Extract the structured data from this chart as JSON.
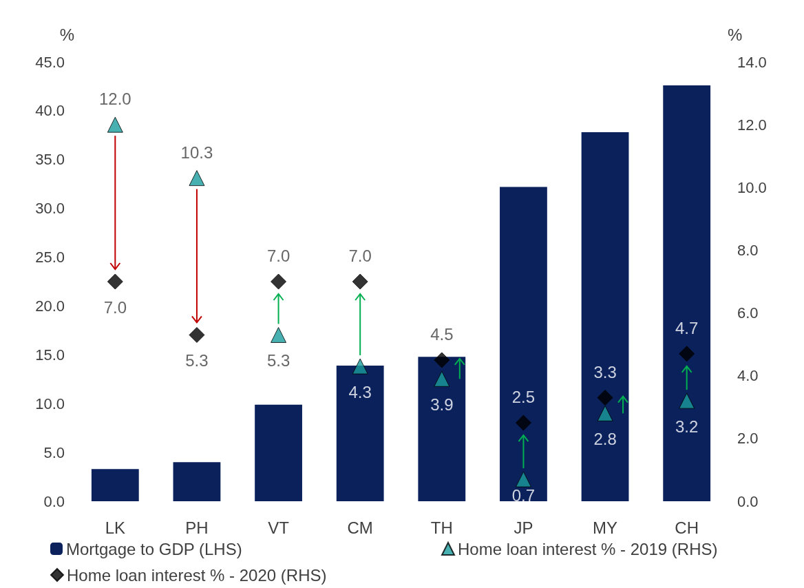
{
  "chart_data": {
    "type": "bar",
    "categories": [
      "LK",
      "PH",
      "VT",
      "CM",
      "TH",
      "JP",
      "MY",
      "CH"
    ],
    "ylabel": "%",
    "y2label": "%",
    "ylim": [
      0,
      45
    ],
    "yticks": [
      {
        "value": 0,
        "label": "0.0"
      },
      {
        "value": 5,
        "label": "5.0"
      },
      {
        "value": 10,
        "label": "10.0"
      },
      {
        "value": 15,
        "label": "15.0"
      },
      {
        "value": 20,
        "label": "20.0"
      },
      {
        "value": 25,
        "label": "25.0"
      },
      {
        "value": 30,
        "label": "30.0"
      },
      {
        "value": 35,
        "label": "35.0"
      },
      {
        "value": 40,
        "label": "40.0"
      },
      {
        "value": 45,
        "label": "45.0"
      }
    ],
    "y2lim": [
      0,
      14
    ],
    "y2ticks": [
      {
        "value": 0,
        "label": "0.0"
      },
      {
        "value": 2,
        "label": "2.0"
      },
      {
        "value": 4,
        "label": "4.0"
      },
      {
        "value": 6,
        "label": "6.0"
      },
      {
        "value": 8,
        "label": "8.0"
      },
      {
        "value": 10,
        "label": "10.0"
      },
      {
        "value": 12,
        "label": "12.0"
      },
      {
        "value": 14,
        "label": "14.0"
      }
    ],
    "grid": false,
    "legend": "bottom",
    "series": [
      {
        "name": "Mortgage to GDP (LHS)",
        "color": "#0a215c",
        "values": [
          3.3,
          4.0,
          9.9,
          13.9,
          14.8,
          32.2,
          37.8,
          42.6
        ]
      },
      {
        "name": "Home loan interest % - 2019 (RHS)",
        "type": "scatter",
        "axis": "y2",
        "marker": "triangle",
        "color": "#1a9c9c",
        "values": [
          12.0,
          10.3,
          5.3,
          4.3,
          3.9,
          0.7,
          2.8,
          3.2
        ],
        "value_labels": [
          "12.0",
          "10.3",
          "5.3",
          "4.3",
          "3.9",
          "0.7",
          "2.8",
          "3.2"
        ]
      },
      {
        "name": "Home loan interest % - 2020 (RHS)",
        "type": "scatter",
        "axis": "y2",
        "marker": "diamond",
        "color": "#000000",
        "values": [
          7.0,
          5.3,
          7.0,
          7.0,
          4.5,
          2.5,
          3.3,
          4.7
        ],
        "value_labels": [
          "7.0",
          "5.3",
          "7.0",
          "7.0",
          "4.5",
          "2.5",
          "3.3",
          "4.7"
        ]
      }
    ]
  }
}
